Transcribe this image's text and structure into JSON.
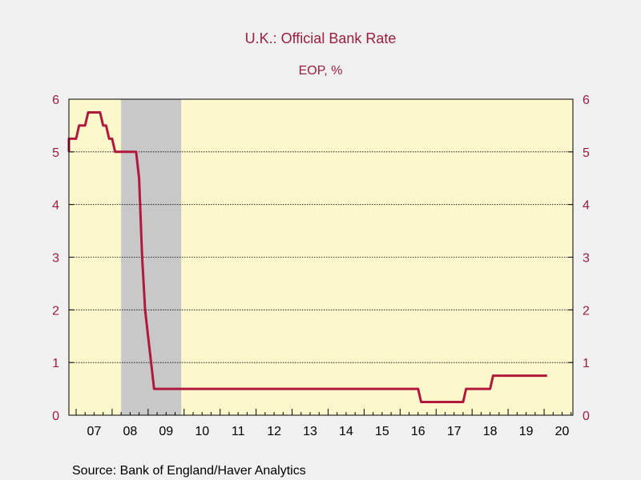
{
  "chart_data": {
    "type": "line",
    "title": "U.K.: Official Bank Rate",
    "subtitle": "EOP, %",
    "source": "Source:  Bank of England/Haver Analytics",
    "y_left_ticks": [
      "0",
      "1",
      "2",
      "3",
      "4",
      "5",
      "6"
    ],
    "y_right_ticks": [
      "0",
      "1",
      "2",
      "3",
      "4",
      "5",
      "6"
    ],
    "ylim": [
      0,
      6
    ],
    "xlim": [
      2006.8,
      2020.8
    ],
    "x_tick_labels": [
      "07",
      "08",
      "09",
      "10",
      "11",
      "12",
      "13",
      "14",
      "15",
      "16",
      "17",
      "18",
      "19",
      "20"
    ],
    "grid": true,
    "colors": {
      "page_background": "#f0f0f0",
      "plot_background": "#fcf8cc",
      "recession_band": "#c8c8c8",
      "series_line": "#b0193c",
      "text": "#9a1e3e",
      "axis_text": "#000000"
    },
    "recession_shading": [
      {
        "start": 2008.25,
        "end": 2009.92
      }
    ],
    "series": [
      {
        "points": [
          {
            "x": "2006-09",
            "y": 5.0
          },
          {
            "x": "2006-10",
            "y": 5.25
          },
          {
            "x": "2007-01",
            "y": 5.25
          },
          {
            "x": "2007-02",
            "y": 5.5
          },
          {
            "x": "2007-04",
            "y": 5.5
          },
          {
            "x": "2007-05",
            "y": 5.75
          },
          {
            "x": "2007-09",
            "y": 5.75
          },
          {
            "x": "2007-10",
            "y": 5.5
          },
          {
            "x": "2007-11",
            "y": 5.5
          },
          {
            "x": "2007-12",
            "y": 5.25
          },
          {
            "x": "2008-01",
            "y": 5.25
          },
          {
            "x": "2008-02",
            "y": 5.0
          },
          {
            "x": "2008-07",
            "y": 5.0
          },
          {
            "x": "2008-09",
            "y": 5.0
          },
          {
            "x": "2008-10",
            "y": 4.5
          },
          {
            "x": "2008-11",
            "y": 3.0
          },
          {
            "x": "2008-12",
            "y": 2.0
          },
          {
            "x": "2009-01",
            "y": 1.5
          },
          {
            "x": "2009-02",
            "y": 1.0
          },
          {
            "x": "2009-03",
            "y": 0.5
          },
          {
            "x": "2016-07",
            "y": 0.5
          },
          {
            "x": "2016-08",
            "y": 0.25
          },
          {
            "x": "2017-10",
            "y": 0.25
          },
          {
            "x": "2017-11",
            "y": 0.5
          },
          {
            "x": "2018-07",
            "y": 0.5
          },
          {
            "x": "2018-08",
            "y": 0.75
          },
          {
            "x": "2020-02",
            "y": 0.75
          }
        ]
      }
    ]
  }
}
